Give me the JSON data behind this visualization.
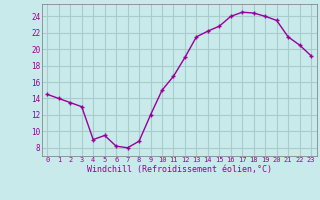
{
  "x": [
    0,
    1,
    2,
    3,
    4,
    5,
    6,
    7,
    8,
    9,
    10,
    11,
    12,
    13,
    14,
    15,
    16,
    17,
    18,
    19,
    20,
    21,
    22,
    23
  ],
  "y": [
    14.5,
    14.0,
    13.5,
    13.0,
    9.0,
    9.5,
    8.2,
    8.0,
    8.8,
    12.0,
    15.0,
    16.7,
    19.0,
    21.5,
    22.2,
    22.8,
    24.0,
    24.5,
    24.4,
    24.0,
    23.5,
    21.5,
    20.5,
    19.2
  ],
  "line_color": "#990099",
  "marker": "+",
  "bg_color": "#c8eaea",
  "grid_color": "#a8cccc",
  "xlabel": "Windchill (Refroidissement éolien,°C)",
  "xlabel_color": "#990099",
  "ylabel_ticks": [
    8,
    10,
    12,
    14,
    16,
    18,
    20,
    22,
    24
  ],
  "xtick_labels": [
    "0",
    "1",
    "2",
    "3",
    "4",
    "5",
    "6",
    "7",
    "8",
    "9",
    "10",
    "11",
    "12",
    "13",
    "14",
    "15",
    "16",
    "17",
    "18",
    "19",
    "20",
    "21",
    "22",
    "23"
  ],
  "ylim": [
    7,
    25.5
  ],
  "xlim": [
    -0.5,
    23.5
  ],
  "tick_color": "#990099",
  "font_family": "monospace"
}
